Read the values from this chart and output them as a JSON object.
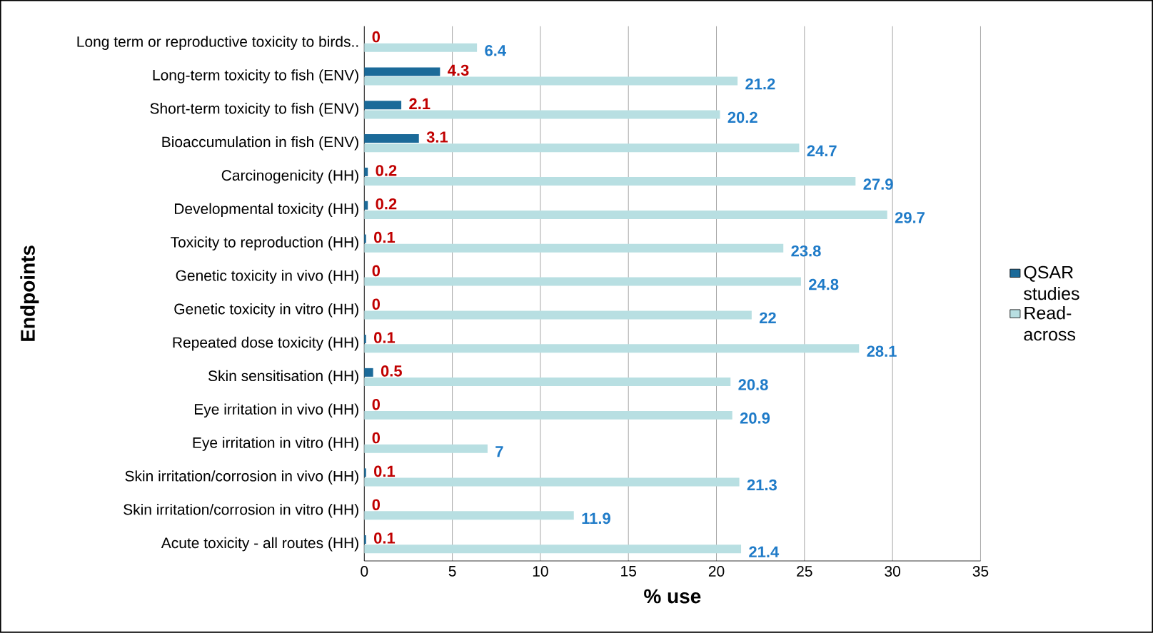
{
  "chart_data": {
    "type": "bar",
    "orientation": "horizontal",
    "xlabel": "% use",
    "ylabel": "Endpoints",
    "categories": [
      "Long term or reproductive toxicity to birds..",
      "Long-term toxicity to fish (ENV)",
      "Short-term toxicity to fish (ENV)",
      "Bioaccumulation in fish (ENV)",
      "Carcinogenicity (HH)",
      "Developmental toxicity (HH)",
      "Toxicity to reproduction (HH)",
      "Genetic toxicity in vivo (HH)",
      "Genetic toxicity in vitro (HH)",
      "Repeated dose toxicity (HH)",
      "Skin sensitisation (HH)",
      "Eye irritation in vivo (HH)",
      "Eye irritation in vitro (HH)",
      "Skin irritation/corrosion in vivo (HH)",
      "Skin irritation/corrosion in vitro (HH)",
      "Acute toxicity - all routes (HH)"
    ],
    "series": [
      {
        "name": "QSAR studies",
        "color": "#1b6a99",
        "values": [
          0,
          4.3,
          2.1,
          3.1,
          0.2,
          0.2,
          0.1,
          0,
          0,
          0.1,
          0.5,
          0,
          0,
          0.1,
          0,
          0.1
        ]
      },
      {
        "name": "Read-across",
        "color": "#b8dfe2",
        "values": [
          6.4,
          21.2,
          20.2,
          24.7,
          27.9,
          29.7,
          23.8,
          24.8,
          22,
          28.1,
          20.8,
          20.9,
          7,
          21.3,
          11.9,
          21.4
        ]
      }
    ],
    "xlim": [
      0,
      35
    ],
    "xticks": [
      0,
      5,
      10,
      15,
      20,
      25,
      30,
      35
    ],
    "grid": "x",
    "legend": "right",
    "data_labels": true
  }
}
